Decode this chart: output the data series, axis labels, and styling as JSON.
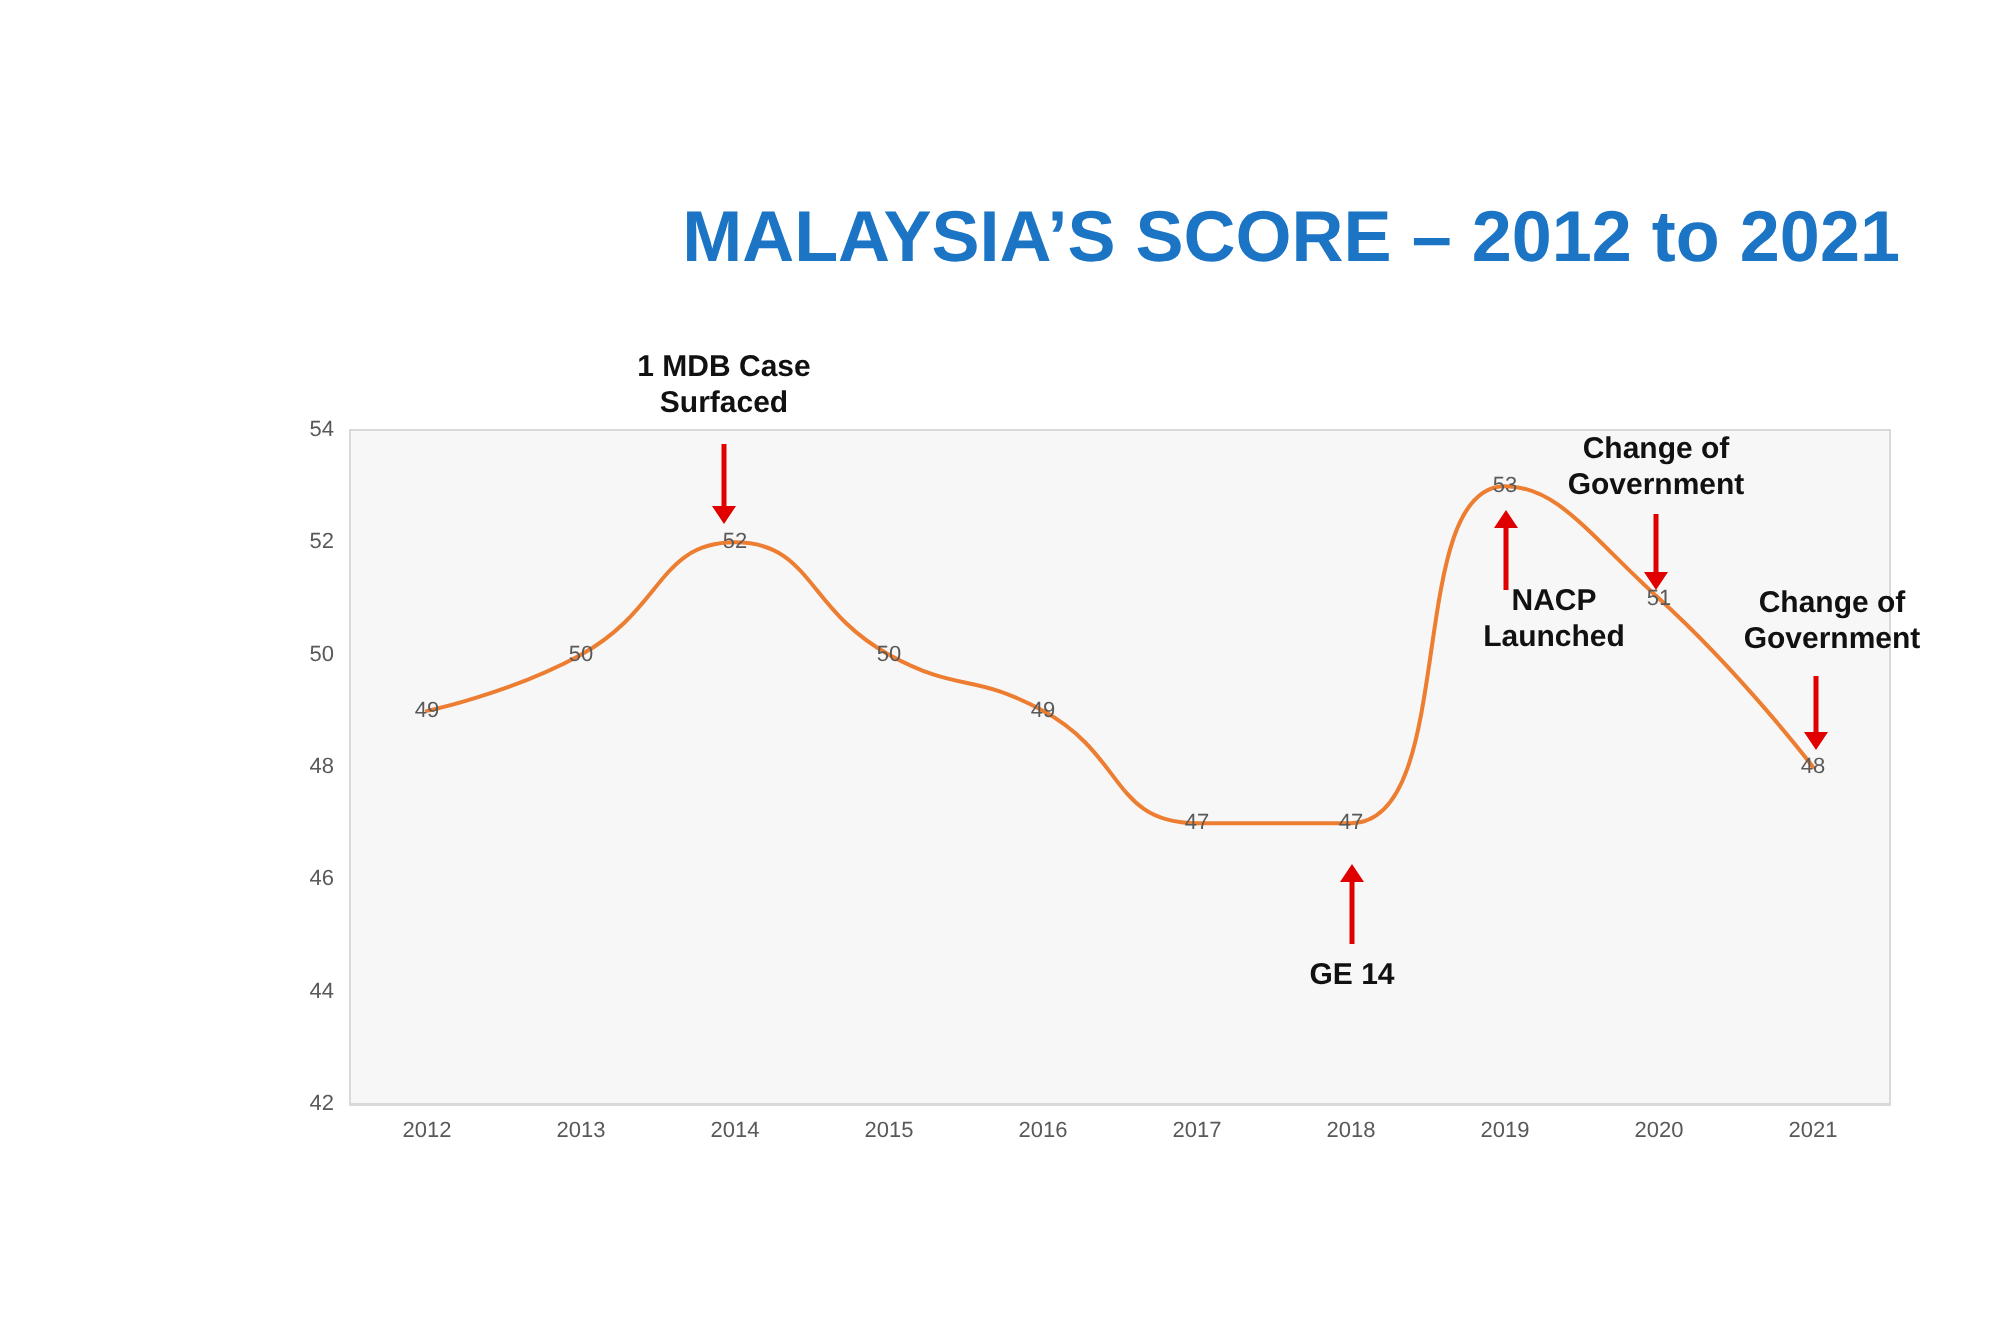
{
  "chart_data": {
    "type": "line",
    "title": "MALAYSIA’S SCORE – 2012 to 2021",
    "categories": [
      "2012",
      "2013",
      "2014",
      "2015",
      "2016",
      "2017",
      "2018",
      "2019",
      "2020",
      "2021"
    ],
    "series": [
      {
        "color": "#ed7d31",
        "values": [
          49,
          50,
          52,
          50,
          49,
          47,
          47,
          53,
          51,
          48
        ]
      }
    ],
    "ylim": [
      42,
      54
    ],
    "yticks": [
      42,
      44,
      46,
      48,
      50,
      52,
      54
    ],
    "grid": false,
    "marker": "none",
    "line_style": "solid",
    "data_labels": true,
    "annotations": [
      "1 MDB Case\nSurfaced",
      "GE 14",
      "NACP\nLaunched",
      "Change of\nGovernment",
      "Change of\nGovernment"
    ]
  }
}
